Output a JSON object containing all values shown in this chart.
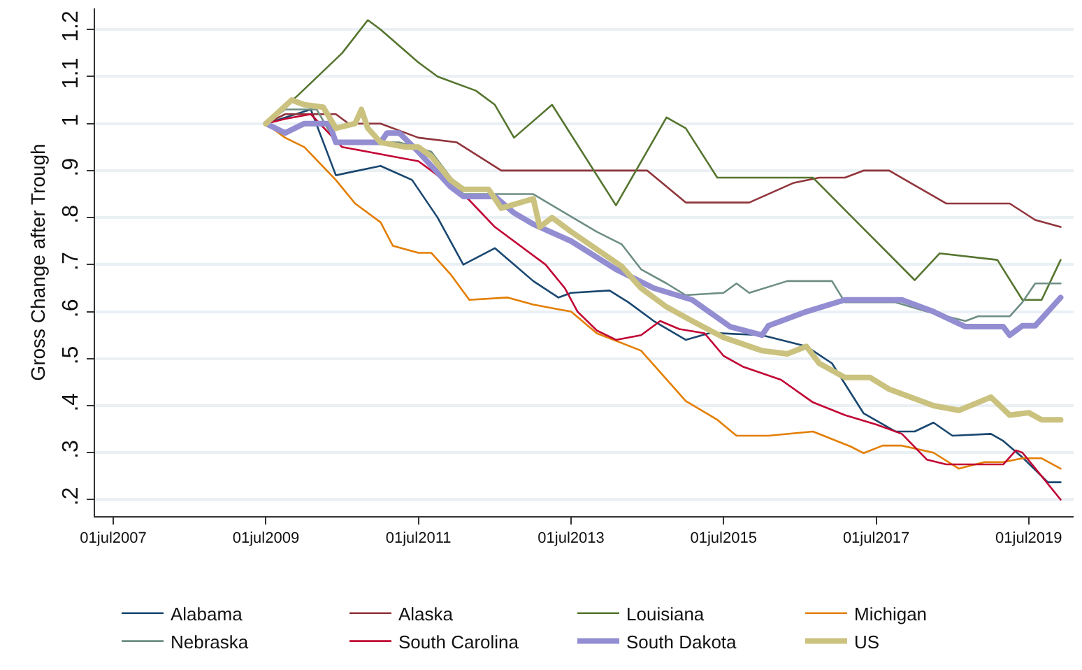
{
  "chart_data": {
    "type": "line",
    "ylabel": "Gross Change after Trough",
    "xlim": [
      "2007-04-05",
      "2020-02-01"
    ],
    "xticks": [
      {
        "value": "2007-07-01",
        "label": "01jul2007"
      },
      {
        "value": "2009-07-01",
        "label": "01jul2009"
      },
      {
        "value": "2011-07-01",
        "label": "01jul2011"
      },
      {
        "value": "2013-07-01",
        "label": "01jul2013"
      },
      {
        "value": "2015-07-01",
        "label": "01jul2015"
      },
      {
        "value": "2017-07-01",
        "label": "01jul2017"
      },
      {
        "value": "2019-07-01",
        "label": "01jul2019"
      }
    ],
    "ylim": [
      0.165,
      1.245
    ],
    "yticks": [
      {
        "value": 0.2,
        "label": ".2"
      },
      {
        "value": 0.3,
        "label": ".3"
      },
      {
        "value": 0.4,
        "label": ".4"
      },
      {
        "value": 0.5,
        "label": ".5"
      },
      {
        "value": 0.6,
        "label": ".6"
      },
      {
        "value": 0.7,
        "label": ".7"
      },
      {
        "value": 0.8,
        "label": ".8"
      },
      {
        "value": 0.9,
        "label": ".9"
      },
      1,
      {
        "value": 1.1,
        "label": "1.1"
      },
      {
        "value": 1.2,
        "label": "1.2"
      }
    ],
    "grid": "y",
    "legend": "bottom",
    "marker": "none",
    "line_style": "solid",
    "series": [
      {
        "name": "Alabama",
        "color": "#1a476f",
        "x": [
          "2009-07",
          "2010-02",
          "2010-06",
          "2011-01",
          "2011-06",
          "2011-10",
          "2012-02",
          "2012-07",
          "2012-10",
          "2013-01",
          "2013-05",
          "2013-07",
          "2014-01",
          "2014-04",
          "2014-08",
          "2015-01",
          "2015-05",
          "2016-01",
          "2016-08",
          "2016-12",
          "2017-05",
          "2017-10",
          "2018-01",
          "2018-04",
          "2018-07",
          "2019-01",
          "2019-03",
          "2019-06",
          "2019-10",
          "2019-12"
        ],
        "values": [
          1.0,
          1.03,
          0.89,
          0.91,
          0.88,
          0.8,
          0.7,
          0.735,
          0.7,
          0.665,
          0.63,
          0.64,
          0.645,
          0.62,
          0.58,
          0.54,
          0.555,
          0.55,
          0.526,
          0.49,
          0.384,
          0.345,
          0.345,
          0.364,
          0.336,
          0.34,
          0.325,
          0.29,
          0.237,
          0.237
        ]
      },
      {
        "name": "Alaska",
        "color": "#90353b",
        "x": [
          "2009-07",
          "2009-10",
          "2010-06",
          "2010-08",
          "2011-01",
          "2011-07",
          "2012-01",
          "2012-08",
          "2014-07",
          "2015-01",
          "2015-11",
          "2016-06",
          "2016-10",
          "2017-02",
          "2017-05",
          "2017-09",
          "2018-06",
          "2019-04",
          "2019-08",
          "2019-12"
        ],
        "values": [
          1.0,
          1.02,
          1.02,
          1.0,
          1.0,
          0.97,
          0.96,
          0.9,
          0.9,
          0.832,
          0.832,
          0.874,
          0.885,
          0.885,
          0.9,
          0.9,
          0.83,
          0.83,
          0.795,
          0.78
        ]
      },
      {
        "name": "Louisiana",
        "color": "#55752f",
        "x": [
          "2009-07",
          "2009-12",
          "2010-07",
          "2010-11",
          "2011-01",
          "2011-07",
          "2011-10",
          "2012-04",
          "2012-07",
          "2012-10",
          "2013-04",
          "2014-02",
          "2014-10",
          "2015-01",
          "2015-06",
          "2016-09",
          "2017-04",
          "2018-01",
          "2018-05",
          "2019-02",
          "2019-06",
          "2019-09",
          "2019-12"
        ],
        "values": [
          1.0,
          1.06,
          1.15,
          1.22,
          1.2,
          1.13,
          1.1,
          1.07,
          1.04,
          0.97,
          1.04,
          0.826,
          1.013,
          0.99,
          0.885,
          0.885,
          0.79,
          0.667,
          0.724,
          0.71,
          0.625,
          0.625,
          0.71
        ]
      },
      {
        "name": "Michigan",
        "color": "#e37e00",
        "x": [
          "2009-07",
          "2009-10",
          "2010-01",
          "2010-06",
          "2010-09",
          "2011-01",
          "2011-03",
          "2011-07",
          "2011-09",
          "2011-12",
          "2012-03",
          "2012-09",
          "2013-01",
          "2013-05",
          "2013-07",
          "2013-11",
          "2014-06",
          "2015-01",
          "2015-06",
          "2015-09",
          "2016-02",
          "2016-09",
          "2017-03",
          "2017-05",
          "2017-08",
          "2017-11",
          "2018-04",
          "2018-08",
          "2018-12",
          "2019-03",
          "2019-06",
          "2019-09",
          "2019-12"
        ],
        "values": [
          1.0,
          0.97,
          0.95,
          0.88,
          0.83,
          0.79,
          0.74,
          0.725,
          0.725,
          0.68,
          0.625,
          0.63,
          0.615,
          0.605,
          0.6,
          0.554,
          0.517,
          0.41,
          0.37,
          0.336,
          0.336,
          0.345,
          0.313,
          0.299,
          0.315,
          0.315,
          0.3,
          0.266,
          0.28,
          0.28,
          0.288,
          0.288,
          0.266
        ]
      },
      {
        "name": "Nebraska",
        "color": "#6e8e84",
        "x": [
          "2009-07",
          "2009-10",
          "2010-03",
          "2010-06",
          "2011-04",
          "2011-09",
          "2012-02",
          "2013-01",
          "2013-06",
          "2013-11",
          "2014-03",
          "2014-06",
          "2014-10",
          "2015-01",
          "2015-07",
          "2015-09",
          "2015-11",
          "2016-05",
          "2016-12",
          "2017-02",
          "2017-10",
          "2018-03",
          "2018-09",
          "2018-11",
          "2019-04",
          "2019-06",
          "2019-08",
          "2019-12"
        ],
        "values": [
          1.0,
          1.03,
          1.03,
          0.96,
          0.96,
          0.94,
          0.85,
          0.85,
          0.81,
          0.77,
          0.743,
          0.69,
          0.66,
          0.635,
          0.64,
          0.66,
          0.64,
          0.665,
          0.665,
          0.62,
          0.62,
          0.6,
          0.58,
          0.59,
          0.59,
          0.62,
          0.66,
          0.66
        ]
      },
      {
        "name": "South Carolina",
        "color": "#c10534",
        "x": [
          "2009-07",
          "2009-10",
          "2010-02",
          "2010-07",
          "2010-11",
          "2011-03",
          "2011-07",
          "2011-09",
          "2012-03",
          "2012-07",
          "2013-03",
          "2013-06",
          "2013-08",
          "2013-11",
          "2014-02",
          "2014-06",
          "2014-09",
          "2014-12",
          "2015-04",
          "2015-07",
          "2015-10",
          "2016-04",
          "2016-09",
          "2017-02",
          "2017-07",
          "2017-11",
          "2018-03",
          "2018-06",
          "2019-03",
          "2019-05",
          "2019-06",
          "2019-09",
          "2019-12"
        ],
        "values": [
          1.0,
          1.01,
          1.02,
          0.95,
          0.94,
          0.93,
          0.92,
          0.9,
          0.837,
          0.78,
          0.7,
          0.65,
          0.6,
          0.56,
          0.54,
          0.55,
          0.58,
          0.563,
          0.554,
          0.506,
          0.483,
          0.455,
          0.407,
          0.38,
          0.36,
          0.34,
          0.285,
          0.275,
          0.275,
          0.305,
          0.3,
          0.25,
          0.2
        ]
      },
      {
        "name": "South Dakota",
        "color": "#938dd2",
        "x": [
          "2009-07",
          "2009-10",
          "2010-01",
          "2010-05",
          "2010-06",
          "2011-01",
          "2011-02",
          "2011-04",
          "2011-07",
          "2011-12",
          "2012-02",
          "2012-07",
          "2012-10",
          "2013-01",
          "2013-07",
          "2014-02",
          "2014-08",
          "2015-02",
          "2015-08",
          "2016-01",
          "2016-02",
          "2016-08",
          "2017-02",
          "2017-11",
          "2018-04",
          "2018-09",
          "2019-03",
          "2019-04",
          "2019-06",
          "2019-08",
          "2019-10",
          "2019-12"
        ],
        "values": [
          1.0,
          0.98,
          1.0,
          1.0,
          0.96,
          0.96,
          0.98,
          0.98,
          0.94,
          0.866,
          0.845,
          0.845,
          0.81,
          0.786,
          0.75,
          0.69,
          0.65,
          0.625,
          0.568,
          0.55,
          0.57,
          0.6,
          0.625,
          0.625,
          0.6,
          0.568,
          0.568,
          0.55,
          0.57,
          0.57,
          0.6,
          0.63
        ]
      },
      {
        "name": "US",
        "color": "#cac27e",
        "x": [
          "2009-07",
          "2009-11",
          "2010-01",
          "2010-04",
          "2010-06",
          "2010-09",
          "2010-10",
          "2010-11",
          "2011-01",
          "2011-05",
          "2011-07",
          "2011-09",
          "2011-12",
          "2012-02",
          "2012-06",
          "2012-08",
          "2013-01",
          "2013-02",
          "2013-04",
          "2013-07",
          "2014-03",
          "2014-06",
          "2014-10",
          "2015-02",
          "2015-07",
          "2016-01",
          "2016-05",
          "2016-08",
          "2016-10",
          "2017-02",
          "2017-06",
          "2017-09",
          "2018-04",
          "2018-08",
          "2019-01",
          "2019-04",
          "2019-07",
          "2019-09",
          "2019-12"
        ],
        "values": [
          1.0,
          1.05,
          1.04,
          1.035,
          0.99,
          1.0,
          1.03,
          0.99,
          0.96,
          0.95,
          0.95,
          0.93,
          0.88,
          0.86,
          0.86,
          0.82,
          0.84,
          0.78,
          0.8,
          0.77,
          0.696,
          0.65,
          0.61,
          0.58,
          0.545,
          0.517,
          0.51,
          0.526,
          0.49,
          0.46,
          0.46,
          0.435,
          0.4,
          0.39,
          0.418,
          0.38,
          0.385,
          0.37,
          0.37
        ]
      }
    ]
  }
}
